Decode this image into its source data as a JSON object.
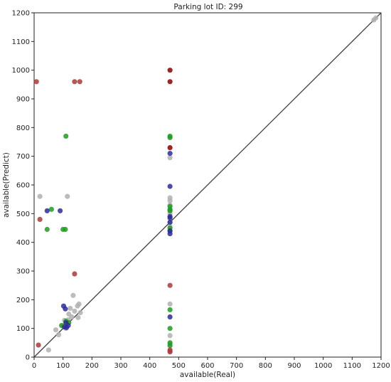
{
  "chart_data": {
    "type": "scatter",
    "title": "Parking lot ID: 299",
    "xlabel": "available(Real)",
    "ylabel": "available(Predict)",
    "xlim": [
      0,
      1200
    ],
    "ylim": [
      0,
      1200
    ],
    "xticks": [
      0,
      100,
      200,
      300,
      400,
      500,
      600,
      700,
      800,
      900,
      1000,
      1100,
      1200
    ],
    "yticks": [
      0,
      100,
      200,
      300,
      400,
      500,
      600,
      700,
      800,
      900,
      1000,
      1100,
      1200
    ],
    "xtick_labels": [
      "0",
      "100",
      "200",
      "300",
      "400",
      "500",
      "600",
      "700",
      "800",
      "900",
      "1000",
      "1100",
      "1200"
    ],
    "ytick_labels": [
      "0",
      "100",
      "200",
      "300",
      "400",
      "500",
      "600",
      "700",
      "800",
      "900",
      "1000",
      "1100",
      "1200"
    ],
    "grid": false,
    "reference_line": {
      "from": [
        0,
        0
      ],
      "to": [
        1200,
        1200
      ],
      "color": "#404040"
    },
    "series": [
      {
        "color": "#b0b0b0",
        "points": [
          [
            1175,
            1175
          ],
          [
            1182,
            1182
          ],
          [
            20,
            560
          ],
          [
            115,
            560
          ],
          [
            50,
            25
          ],
          [
            75,
            95
          ],
          [
            85,
            78
          ],
          [
            100,
            110
          ],
          [
            110,
            100
          ],
          [
            120,
            150
          ],
          [
            125,
            170
          ],
          [
            130,
            140
          ],
          [
            135,
            215
          ],
          [
            140,
            160
          ],
          [
            150,
            178
          ],
          [
            155,
            185
          ],
          [
            152,
            138
          ],
          [
            160,
            155
          ],
          [
            105,
            128
          ],
          [
            115,
            118
          ],
          [
            118,
            130
          ],
          [
            470,
            695
          ],
          [
            470,
            555
          ],
          [
            470,
            545
          ],
          [
            470,
            530
          ],
          [
            470,
            510
          ],
          [
            470,
            500
          ],
          [
            470,
            470
          ],
          [
            470,
            455
          ],
          [
            470,
            185
          ],
          [
            470,
            75
          ],
          [
            470,
            45
          ],
          [
            470,
            20
          ]
        ]
      },
      {
        "color": "#229a22",
        "points": [
          [
            110,
            770
          ],
          [
            60,
            515
          ],
          [
            45,
            445
          ],
          [
            100,
            445
          ],
          [
            108,
            445
          ],
          [
            120,
            120
          ],
          [
            95,
            110
          ],
          [
            110,
            125
          ],
          [
            470,
            770
          ],
          [
            470,
            765
          ],
          [
            470,
            525
          ],
          [
            470,
            515
          ],
          [
            470,
            510
          ],
          [
            470,
            450
          ],
          [
            470,
            440
          ],
          [
            470,
            165
          ],
          [
            470,
            100
          ],
          [
            470,
            50
          ],
          [
            470,
            40
          ]
        ]
      },
      {
        "color": "#2b2b99",
        "points": [
          [
            45,
            510
          ],
          [
            90,
            510
          ],
          [
            102,
            178
          ],
          [
            108,
            168
          ],
          [
            105,
            105
          ],
          [
            112,
            103
          ],
          [
            110,
            120
          ],
          [
            118,
            110
          ],
          [
            470,
            710
          ],
          [
            470,
            595
          ],
          [
            470,
            490
          ],
          [
            470,
            485
          ],
          [
            470,
            470
          ],
          [
            470,
            440
          ],
          [
            470,
            430
          ],
          [
            470,
            140
          ]
        ]
      },
      {
        "color": "#a83a3a",
        "points": [
          [
            8,
            960
          ],
          [
            140,
            960
          ],
          [
            158,
            960
          ],
          [
            20,
            480
          ],
          [
            140,
            290
          ],
          [
            15,
            42
          ],
          [
            470,
            250
          ],
          [
            470,
            25
          ],
          [
            470,
            18
          ]
        ]
      },
      {
        "color": "#8a0000",
        "points": [
          [
            470,
            1000
          ],
          [
            470,
            960
          ],
          [
            470,
            730
          ]
        ]
      }
    ]
  }
}
